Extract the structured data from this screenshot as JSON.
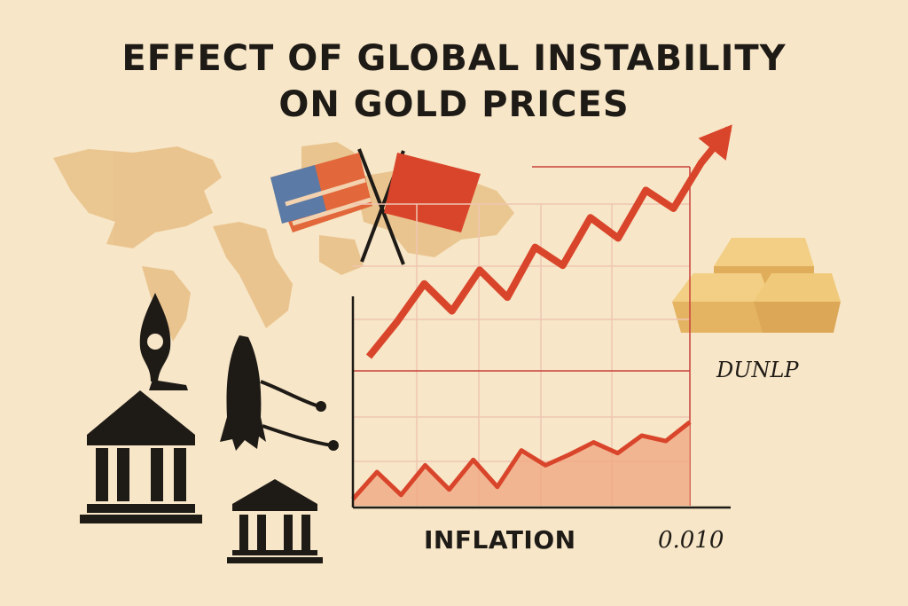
{
  "title": {
    "line1": "EFFECT OF GLOBAL INSTABILITY",
    "line2": "ON GOLD PRICES"
  },
  "colors": {
    "background": "#f7e6c7",
    "map": "#e8bf86",
    "trend_line": "#d9452b",
    "area_fill": "#f0a47f",
    "gold": "#e9bf6a",
    "icons": "#1e1a16"
  },
  "icons": [
    "world-map-icon",
    "us-flag-icon",
    "china-flag-icon",
    "missile-icon",
    "rocket-icon",
    "bank-building-icon",
    "gold-bars-icon",
    "up-arrow-icon"
  ],
  "chart_data": {
    "type": "line",
    "title": "EFFECT OF GLOBAL INSTABILITY ON GOLD PRICES",
    "xlabel": "INFLATION",
    "ylabel": "",
    "x_tick_labels": [
      "0.010"
    ],
    "annotations": [
      "DUNLP"
    ],
    "grid": true,
    "legend": "none",
    "ylim": [
      0,
      100
    ],
    "series": [
      {
        "style": "line-with-arrow",
        "values": [
          0,
          15,
          32,
          20,
          38,
          26,
          48,
          40,
          61,
          52,
          73,
          65,
          85,
          100
        ]
      },
      {
        "style": "area",
        "values": [
          5,
          25,
          8,
          30,
          12,
          34,
          14,
          41,
          30,
          38,
          47,
          39,
          52,
          48,
          62
        ]
      }
    ]
  }
}
